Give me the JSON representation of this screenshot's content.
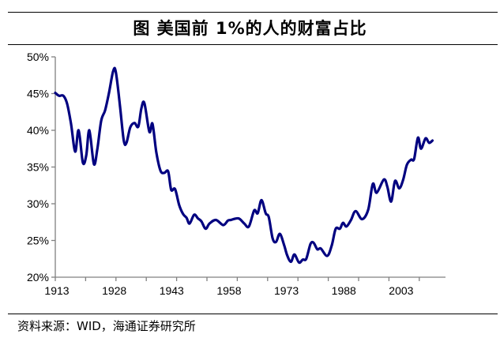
{
  "title": "图  美国前 1%的人的财富占比",
  "source": "资料来源：WID，海通证券研究所",
  "chart_data": {
    "type": "line",
    "title": "图  美国前 1%的人的财富占比",
    "xlabel": "",
    "ylabel": "",
    "xlim": [
      1913,
      2015
    ],
    "ylim": [
      20,
      50
    ],
    "x_tick_labels": [
      "1913",
      "1928",
      "1943",
      "1958",
      "1973",
      "1988",
      "2003"
    ],
    "x_tick_values": [
      1913,
      1928,
      1943,
      1958,
      1973,
      1988,
      2003
    ],
    "y_tick_labels": [
      "20%",
      "25%",
      "30%",
      "35%",
      "40%",
      "45%",
      "50%"
    ],
    "y_tick_values": [
      20,
      25,
      30,
      35,
      40,
      45,
      50
    ],
    "grid": false,
    "legend": "none",
    "line_color": "#000080",
    "series": [
      {
        "x": [
          1913.0,
          1914.0,
          1915.1,
          1916.1,
          1917.1,
          1918.2,
          1919.1,
          1920.2,
          1921.1,
          1921.9,
          1923.1,
          1924.0,
          1925.0,
          1926.0,
          1927.0,
          1928.1,
          1928.8,
          1929.9,
          1930.9,
          1931.6,
          1932.6,
          1933.7,
          1934.7,
          1935.5,
          1936.3,
          1937.6,
          1938.4,
          1939.4,
          1940.5,
          1941.5,
          1942.5,
          1943.3,
          1944.3,
          1945.4,
          1946.4,
          1947.3,
          1948.1,
          1949.3,
          1950.3,
          1951.2,
          1952.3,
          1953.3,
          1955.0,
          1956.9,
          1958.1,
          1958.9,
          1960.9,
          1962.4,
          1963.6,
          1965.0,
          1965.9,
          1966.9,
          1968.0,
          1968.8,
          1969.8,
          1970.7,
          1971.7,
          1972.8,
          1973.6,
          1974.6,
          1975.5,
          1976.7,
          1977.7,
          1978.6,
          1979.7,
          1980.5,
          1981.5,
          1982.4,
          1984.1,
          1985.3,
          1986.3,
          1987.4,
          1988.2,
          1989.1,
          1990.3,
          1991.5,
          1993.2,
          1994.8,
          1996.0,
          1997.0,
          1998.9,
          1999.8,
          2000.8,
          2001.8,
          2002.9,
          2003.9,
          2004.9,
          2006.0,
          2006.8,
          2007.8,
          2008.6,
          2009.8,
          2010.7,
          2011.6
        ],
        "values": [
          45.1,
          44.7,
          44.7,
          43.6,
          40.9,
          37.1,
          40.0,
          35.6,
          36.6,
          40.0,
          35.4,
          37.5,
          41.3,
          42.7,
          45.0,
          48.0,
          48.0,
          43.4,
          38.6,
          38.3,
          40.4,
          41.0,
          40.5,
          43.0,
          43.7,
          39.8,
          40.9,
          37.0,
          34.5,
          34.2,
          34.4,
          31.9,
          32.0,
          29.8,
          28.6,
          28.1,
          27.3,
          28.5,
          28.0,
          27.6,
          26.6,
          27.3,
          27.8,
          27.1,
          27.7,
          27.8,
          28.0,
          27.3,
          26.9,
          29.1,
          28.7,
          30.5,
          28.7,
          28.2,
          25.3,
          24.8,
          25.9,
          24.4,
          23.0,
          22.1,
          23.1,
          22.0,
          22.4,
          22.5,
          24.5,
          24.7,
          23.8,
          23.9,
          22.9,
          24.4,
          26.6,
          26.6,
          27.4,
          26.9,
          27.8,
          29.0,
          27.9,
          29.2,
          32.7,
          31.5,
          33.3,
          32.3,
          30.3,
          33.1,
          32.1,
          33.2,
          35.3,
          36.0,
          36.1,
          39.0,
          37.5,
          38.9,
          38.3,
          38.6
        ]
      }
    ]
  }
}
